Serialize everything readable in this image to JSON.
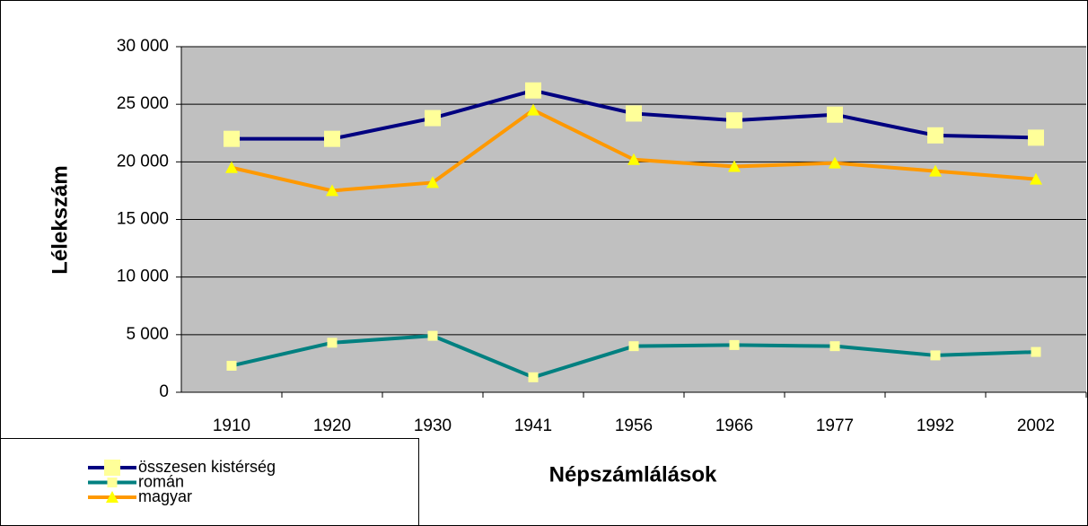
{
  "chart_data": {
    "type": "line",
    "xlabel": "Népszámlálások",
    "ylabel": "Lélekszám",
    "categories": [
      "1910",
      "1920",
      "1930",
      "1941",
      "1956",
      "1966",
      "1977",
      "1992",
      "2002"
    ],
    "series": [
      {
        "name": "összesen kistérség",
        "color": "#000080",
        "marker": "square",
        "marker_color": "#ffff99",
        "values": [
          22000,
          22000,
          23800,
          26200,
          24200,
          23600,
          24100,
          22300,
          22100
        ]
      },
      {
        "name": "román",
        "color": "#008080",
        "marker": "small-square",
        "marker_color": "#ffff99",
        "values": [
          2300,
          4300,
          4900,
          1300,
          4000,
          4100,
          4000,
          3200,
          3500
        ]
      },
      {
        "name": "magyar",
        "color": "#ff9900",
        "marker": "triangle",
        "marker_color": "#ffff00",
        "values": [
          19500,
          17500,
          18200,
          24500,
          20200,
          19600,
          19900,
          19200,
          18500
        ]
      }
    ],
    "ylim": [
      0,
      30000
    ],
    "yticks": [
      0,
      {
        "value": 5000,
        "label": "5 000"
      },
      {
        "value": 10000,
        "label": "10 000"
      },
      {
        "value": 15000,
        "label": "15 000"
      },
      {
        "value": 20000,
        "label": "20 000"
      },
      {
        "value": 25000,
        "label": "25 000"
      },
      {
        "value": 30000,
        "label": "30 000"
      }
    ],
    "grid": true,
    "plot_background": "#c0c0c0",
    "legend": "bottom-left"
  }
}
